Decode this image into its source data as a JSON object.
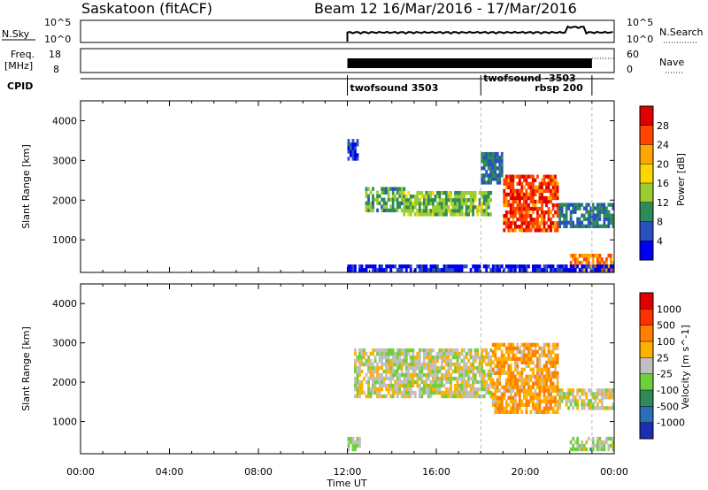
{
  "header": {
    "station": "Saskatoon (fitACF)",
    "beam_date": "Beam 12  16/Mar/2016 - 17/Mar/2016"
  },
  "top_panel": {
    "nsky_label": "N.Sky",
    "nsky_ticks": [
      "10^5",
      "10^0"
    ],
    "nsearch_label": "N.Search",
    "nsearch_ticks": [
      "10^5",
      "10^0"
    ],
    "freq_label": "Freq.",
    "freq_unit": "[MHz]",
    "freq_ticks": [
      "18",
      "8"
    ],
    "nave_label": "Nave",
    "nave_ticks": [
      "60",
      "0"
    ],
    "cpid_label": "CPID",
    "cpid_segments": [
      {
        "label": "twofsound 3503",
        "start_hour": 12.0,
        "end_hour": 18.0
      },
      {
        "label": "twofsound -3503",
        "start_hour": 18.0,
        "end_hour": 23.0
      },
      {
        "label": "rbsp 200",
        "start_hour": 18.0,
        "end_hour": 23.0
      }
    ]
  },
  "x_axis": {
    "label": "Time UT",
    "ticks": [
      "00:00",
      "04:00",
      "08:00",
      "12:00",
      "16:00",
      "20:00",
      "00:00"
    ],
    "tick_hours": [
      0,
      4,
      8,
      12,
      16,
      20,
      24
    ],
    "range_hours": [
      0,
      24
    ]
  },
  "power_panel": {
    "ylabel": "Slant Range [km]",
    "yticks": [
      "4000",
      "3000",
      "2000",
      "1000"
    ],
    "colorbar_label": "Power [dB]",
    "colorbar_ticks": [
      "28",
      "24",
      "20",
      "16",
      "12",
      "8",
      "4"
    ],
    "colors": [
      "#0000f0",
      "#2a52be",
      "#2e8b57",
      "#9acd32",
      "#ffd700",
      "#ffa500",
      "#ff4500",
      "#e00000"
    ]
  },
  "velocity_panel": {
    "ylabel": "Slant Range [km]",
    "yticks": [
      "4000",
      "3000",
      "2000",
      "1000"
    ],
    "colorbar_label": "Velocity [m s^-1]",
    "colorbar_ticks": [
      "1000",
      "500",
      "100",
      "25",
      "-25",
      "-100",
      "-500",
      "-1000"
    ],
    "colors": [
      "#1c2fb0",
      "#2a6fb8",
      "#2e8b57",
      "#6fcf3a",
      "#c0c0c0",
      "#ffb000",
      "#ff7f00",
      "#ff3000",
      "#e00000"
    ]
  },
  "chart_data": [
    {
      "type": "heatmap",
      "title": "Power [dB]",
      "xlabel": "Time UT",
      "ylabel": "Slant Range [km]",
      "xlim": [
        0,
        24
      ],
      "ylim": [
        180,
        4500
      ],
      "scale": [
        4,
        28
      ],
      "bands": [
        {
          "start_hour": 12.0,
          "end_hour": 12.4,
          "range_km": [
            3000,
            3500
          ],
          "value": 8
        },
        {
          "start_hour": 12.8,
          "end_hour": 14.5,
          "range_km": [
            1700,
            2300
          ],
          "value": 12
        },
        {
          "start_hour": 14.5,
          "end_hour": 18.5,
          "range_km": [
            1600,
            2200
          ],
          "value": 14
        },
        {
          "start_hour": 18.0,
          "end_hour": 19.0,
          "range_km": [
            2400,
            3200
          ],
          "value": 10
        },
        {
          "start_hour": 19.0,
          "end_hour": 21.5,
          "range_km": [
            1200,
            2600
          ],
          "value": 24
        },
        {
          "start_hour": 21.5,
          "end_hour": 24.0,
          "range_km": [
            1300,
            1900
          ],
          "value": 10
        },
        {
          "start_hour": 22.0,
          "end_hour": 24.0,
          "range_km": [
            200,
            600
          ],
          "value": 22
        },
        {
          "start_hour": 12.0,
          "end_hour": 24.0,
          "range_km": [
            200,
            300
          ],
          "value": 6
        }
      ]
    },
    {
      "type": "heatmap",
      "title": "Velocity [m s^-1]",
      "xlabel": "Time UT",
      "ylabel": "Slant Range [km]",
      "xlim": [
        0,
        24
      ],
      "ylim": [
        180,
        4500
      ],
      "scale": [
        -1000,
        1000
      ],
      "bands": [
        {
          "start_hour": 12.3,
          "end_hour": 18.5,
          "range_km": [
            1600,
            2800
          ],
          "value": 0
        },
        {
          "start_hour": 18.5,
          "end_hour": 21.5,
          "range_km": [
            1200,
            3000
          ],
          "value": 300
        },
        {
          "start_hour": 21.5,
          "end_hour": 24.0,
          "range_km": [
            1300,
            1800
          ],
          "value": 0
        },
        {
          "start_hour": 22.0,
          "end_hour": 24.0,
          "range_km": [
            250,
            600
          ],
          "value": -100
        },
        {
          "start_hour": 12.0,
          "end_hour": 12.5,
          "range_km": [
            250,
            600
          ],
          "value": -100
        }
      ]
    }
  ]
}
